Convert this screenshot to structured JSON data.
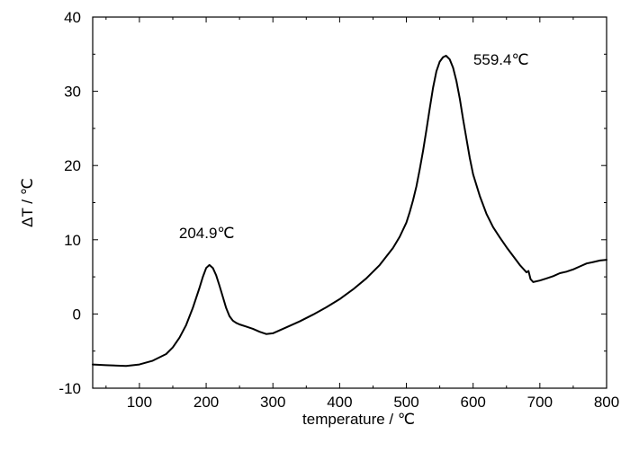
{
  "chart_data": {
    "type": "line",
    "title": "",
    "xlabel": "temperature / ℃",
    "ylabel": "ΔT / ℃",
    "xlim": [
      30,
      800
    ],
    "ylim": [
      -10,
      40
    ],
    "xticks": [
      100,
      200,
      300,
      400,
      500,
      600,
      700,
      800
    ],
    "yticks": [
      -10,
      0,
      10,
      20,
      30,
      40
    ],
    "grid": false,
    "legend": "none",
    "line_color": "#000000",
    "annotations": [
      {
        "text": "204.9℃",
        "x": 204.9,
        "y": 6.6
      },
      {
        "text": "559.4℃",
        "x": 559.4,
        "y": 34.8
      }
    ],
    "series": [
      {
        "x": [
          30,
          50,
          80,
          100,
          120,
          140,
          150,
          160,
          170,
          180,
          190,
          195,
          200,
          204.9,
          210,
          215,
          220,
          225,
          230,
          235,
          240,
          245,
          250,
          260,
          270,
          280,
          290,
          300,
          320,
          340,
          360,
          380,
          400,
          420,
          440,
          460,
          480,
          490,
          500,
          505,
          510,
          515,
          520,
          525,
          530,
          535,
          540,
          545,
          550,
          555,
          559.4,
          565,
          570,
          575,
          580,
          585,
          590,
          595,
          600,
          610,
          620,
          630,
          640,
          650,
          660,
          670,
          675,
          680,
          683,
          686,
          690,
          700,
          710,
          720,
          730,
          740,
          750,
          760,
          770,
          780,
          790,
          800
        ],
        "y": [
          -6.8,
          -6.9,
          -7.0,
          -6.8,
          -6.3,
          -5.4,
          -4.5,
          -3.2,
          -1.5,
          0.8,
          3.5,
          5.0,
          6.2,
          6.6,
          6.2,
          5.2,
          3.8,
          2.3,
          0.8,
          -0.3,
          -0.9,
          -1.2,
          -1.4,
          -1.7,
          -2.0,
          -2.4,
          -2.7,
          -2.6,
          -1.8,
          -1.0,
          -0.1,
          0.9,
          2.0,
          3.3,
          4.8,
          6.6,
          8.9,
          10.4,
          12.3,
          13.7,
          15.3,
          17.2,
          19.5,
          22.0,
          24.8,
          27.7,
          30.5,
          32.7,
          34.0,
          34.6,
          34.8,
          34.3,
          33.2,
          31.4,
          29.0,
          26.2,
          23.6,
          21.0,
          18.8,
          15.9,
          13.5,
          11.7,
          10.3,
          9.0,
          7.8,
          6.6,
          6.1,
          5.6,
          5.8,
          4.7,
          4.3,
          4.5,
          4.8,
          5.1,
          5.5,
          5.7,
          6.0,
          6.4,
          6.8,
          7.0,
          7.2,
          7.3
        ]
      }
    ]
  }
}
